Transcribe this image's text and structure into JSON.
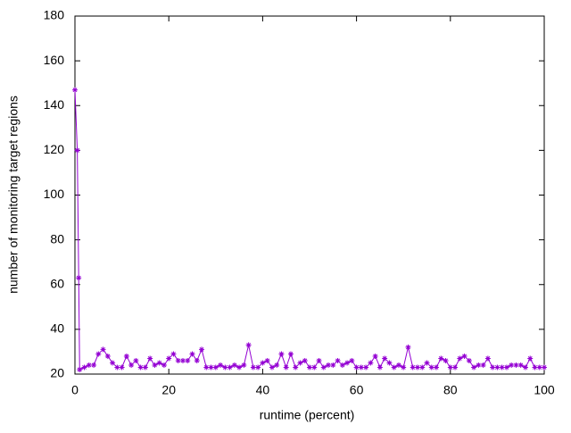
{
  "chart_data": {
    "type": "line",
    "xlabel": "runtime (percent)",
    "ylabel": "number of monitoring target regions",
    "x": [
      0,
      0.5,
      0.8,
      1,
      2,
      3,
      4,
      5,
      6,
      7,
      8,
      9,
      10,
      11,
      12,
      13,
      14,
      15,
      16,
      17,
      18,
      19,
      20,
      21,
      22,
      23,
      24,
      25,
      26,
      27,
      28,
      29,
      30,
      31,
      32,
      33,
      34,
      35,
      36,
      37,
      38,
      39,
      40,
      41,
      42,
      43,
      44,
      45,
      46,
      47,
      48,
      49,
      50,
      51,
      52,
      53,
      54,
      55,
      56,
      57,
      58,
      59,
      60,
      61,
      62,
      63,
      64,
      65,
      66,
      67,
      68,
      69,
      70,
      71,
      72,
      73,
      74,
      75,
      76,
      77,
      78,
      79,
      80,
      81,
      82,
      83,
      84,
      85,
      86,
      87,
      88,
      89,
      90,
      91,
      92,
      93,
      94,
      95,
      96,
      97,
      98,
      99,
      100
    ],
    "series": [
      {
        "color": "#9400d3",
        "values": [
          147,
          120,
          63,
          22,
          23,
          24,
          24,
          29,
          31,
          28,
          25,
          23,
          23,
          28,
          24,
          26,
          23,
          23,
          27,
          24,
          25,
          24,
          27,
          29,
          26,
          26,
          26,
          29,
          26,
          31,
          23,
          23,
          23,
          24,
          23,
          23,
          24,
          23,
          24,
          33,
          23,
          23,
          25,
          26,
          23,
          24,
          29,
          23,
          29,
          23,
          25,
          26,
          23,
          23,
          26,
          23,
          24,
          24,
          26,
          24,
          25,
          26,
          23,
          23,
          23,
          25,
          28,
          23,
          27,
          25,
          23,
          24,
          23,
          32,
          23,
          23,
          23,
          25,
          23,
          23,
          27,
          26,
          23,
          23,
          27,
          28,
          26,
          23,
          24,
          24,
          27,
          23,
          23,
          23,
          23,
          24,
          24,
          24,
          23,
          27,
          23,
          23,
          23
        ]
      }
    ],
    "xlim": [
      0,
      100
    ],
    "xticks": [
      0,
      20,
      40,
      60,
      80,
      100
    ],
    "ylim": [
      20,
      180
    ],
    "yticks": [
      20,
      40,
      60,
      80,
      100,
      120,
      140,
      160,
      180
    ],
    "grid": false
  }
}
